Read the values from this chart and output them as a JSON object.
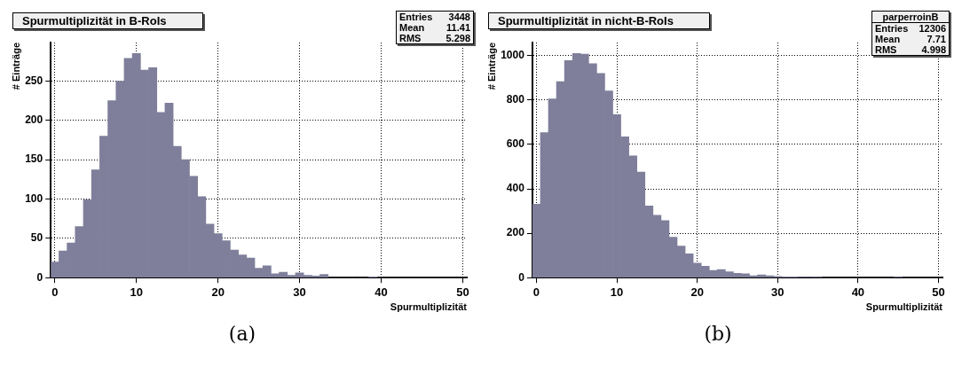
{
  "chart_data": [
    {
      "type": "histogram",
      "title": "Spurmultiplizität in B-RoIs",
      "xlabel": "Spurmultiplizität",
      "ylabel": "# Einträge",
      "color": "#7f7f9b",
      "bins": [
        -0.5,
        0.5,
        1.5,
        2.5,
        3.5,
        4.5,
        5.5,
        6.5,
        7.5,
        8.5,
        9.5,
        10.5,
        11.5,
        12.5,
        13.5,
        14.5,
        15.5,
        16.5,
        17.5,
        18.5,
        19.5,
        20.5,
        21.5,
        22.5,
        23.5,
        24.5,
        25.5,
        26.5,
        27.5,
        28.5,
        29.5,
        30.5,
        31.5,
        32.5,
        33.5,
        34.5,
        35.5,
        36.5,
        37.5,
        38.5,
        39.5,
        40.5,
        41.5,
        42.5,
        43.5,
        44.5,
        45.5,
        46.5,
        47.5,
        48.5,
        49.5,
        50.5
      ],
      "values": [
        20,
        34,
        44,
        65,
        99,
        137,
        180,
        225,
        250,
        279,
        285,
        264,
        267,
        210,
        222,
        167,
        150,
        129,
        103,
        68,
        56,
        47,
        35,
        29,
        25,
        12,
        15,
        5,
        7,
        3,
        6,
        3,
        2,
        4,
        0,
        0,
        0,
        0,
        0,
        1,
        0,
        0,
        0,
        0,
        0,
        0,
        0,
        0,
        0,
        0,
        0
      ],
      "xlim": [
        -0.5,
        50.5
      ],
      "xticks": [
        0,
        10,
        20,
        30,
        40,
        50
      ],
      "ylim": [
        0,
        299
      ],
      "yticks": [
        0,
        50,
        100,
        150,
        200,
        250
      ],
      "grid": true,
      "annotations": [
        "Entries",
        "3448",
        "Mean",
        "11.41",
        "RMS",
        "5.298",
        "(a)"
      ]
    },
    {
      "type": "histogram",
      "title": "Spurmultiplizität in nicht-B-RoIs",
      "xlabel": "Spurmultiplizität",
      "ylabel": "# Einträge",
      "color": "#7f7f9b",
      "bins": [
        -0.5,
        0.5,
        1.5,
        2.5,
        3.5,
        4.5,
        5.5,
        6.5,
        7.5,
        8.5,
        9.5,
        10.5,
        11.5,
        12.5,
        13.5,
        14.5,
        15.5,
        16.5,
        17.5,
        18.5,
        19.5,
        20.5,
        21.5,
        22.5,
        23.5,
        24.5,
        25.5,
        26.5,
        27.5,
        28.5,
        29.5,
        30.5,
        31.5,
        32.5,
        33.5,
        34.5,
        35.5,
        36.5,
        37.5,
        38.5,
        39.5,
        40.5,
        41.5,
        42.5,
        43.5,
        44.5,
        45.5,
        46.5,
        47.5,
        48.5,
        49.5,
        50.5
      ],
      "values": [
        331,
        653,
        805,
        883,
        978,
        1010,
        1007,
        964,
        920,
        841,
        734,
        634,
        549,
        476,
        323,
        281,
        257,
        182,
        142,
        107,
        65,
        51,
        32,
        36,
        26,
        19,
        17,
        8,
        12,
        8,
        5,
        3,
        3,
        2,
        2,
        1,
        0,
        0,
        0,
        0,
        0,
        0,
        0,
        0,
        0,
        1,
        0,
        0,
        0,
        0,
        0
      ],
      "xlim": [
        -0.5,
        50.5
      ],
      "xticks": [
        0,
        10,
        20,
        30,
        40,
        50
      ],
      "ylim": [
        0,
        1059
      ],
      "yticks": [
        0,
        200,
        400,
        600,
        800,
        1000
      ],
      "grid": true,
      "annotations": [
        "parperroinB",
        "Entries",
        "12306",
        "Mean",
        "7.71",
        "RMS",
        "4.998",
        "(b)"
      ]
    }
  ]
}
